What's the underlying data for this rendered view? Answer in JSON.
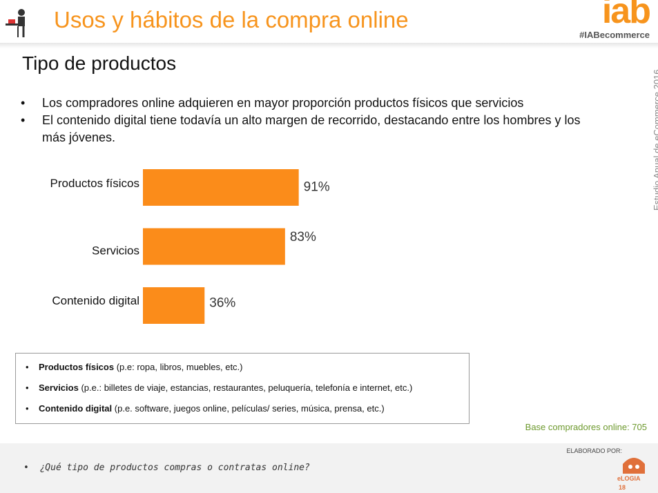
{
  "header": {
    "title": "Usos y hábitos de la compra online",
    "logo": "iab",
    "hashtag": "#IABecommerce",
    "side": "Estudio Anual de eCommerce 2016"
  },
  "slide_title": "Tipo de productos",
  "bullets": [
    "Los compradores online adquieren en mayor proporción productos físicos que servicios",
    "El contenido digital tiene todavía un alto margen de recorrido, destacando entre los hombres y los más jóvenes."
  ],
  "chart_data": {
    "type": "bar",
    "orientation": "horizontal",
    "categories": [
      "Productos físicos",
      "Servicios",
      "Contenido digital"
    ],
    "values": [
      91,
      83,
      36
    ],
    "value_labels": [
      "91%",
      "83%",
      "36%"
    ],
    "color": "#fb8c1a"
  },
  "definitions": [
    {
      "term": "Productos físicos",
      "text": "(p.e: ropa, libros, muebles, etc.)"
    },
    {
      "term": "Servicios",
      "text": "(p.e.: billetes de viaje, estancias, restaurantes, peluquería, telefonía e internet, etc.)"
    },
    {
      "term": "Contenido digital",
      "text": "(p.e. software, juegos online, películas/ series, música, prensa, etc.)"
    }
  ],
  "base_note": "Base compradores online: 705",
  "footer": {
    "question": "¿Qué tipo de productos compras o contratas online?",
    "credit": "ELABORADO POR:",
    "brand": "eLOGIA",
    "page": "18"
  }
}
